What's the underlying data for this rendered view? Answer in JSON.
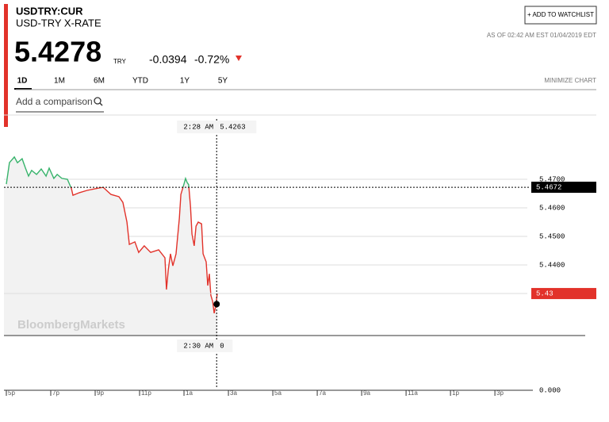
{
  "header": {
    "ticker": "USDTRY:CUR",
    "name": "USD-TRY X-RATE",
    "watchlist_button": "+ ADD TO WATCHLIST",
    "as_of": "AS OF 02:42 AM EST 01/04/2019 EDT",
    "price": "5.4278",
    "currency": "TRY",
    "change": "-0.0394",
    "change_percent": "-0.72%",
    "tabs": [
      "1D",
      "1M",
      "6M",
      "YTD",
      "1Y",
      "5Y"
    ],
    "minimize": "MINIMIZE CHART",
    "comparison_placeholder": "Add a comparison",
    "watermark": "BloombergMarkets"
  },
  "chart_data": {
    "type": "line",
    "x": [
      0,
      0.14,
      0.36,
      0.5,
      0.71,
      0.86,
      1,
      1.14,
      1.36,
      1.57,
      1.79,
      1.93,
      2.14,
      2.29,
      2.5,
      2.75,
      2.93,
      3,
      3.29,
      3.64,
      4,
      4.36,
      4.71,
      5.07,
      5.25,
      5.43,
      5.54,
      5.79,
      5.96,
      6.21,
      6.5,
      6.86,
      7.14,
      7.21,
      7.29,
      7.39,
      7.5,
      7.64,
      7.79,
      7.86,
      8,
      8.07,
      8.14,
      8.21,
      8.29,
      8.36,
      8.46,
      8.54,
      8.64,
      8.79,
      8.86,
      9,
      9.07,
      9.14,
      9.21,
      9.29,
      9.36,
      9.43,
      9.5
    ],
    "series": [
      {
        "color": "#e2322a",
        "color_above": "#37b36b",
        "values": [
          5.4683,
          5.4758,
          5.4778,
          5.4758,
          5.4772,
          5.4739,
          5.4711,
          5.4731,
          5.4717,
          5.4736,
          5.4711,
          5.4739,
          5.4703,
          5.4717,
          5.4703,
          5.47,
          5.4667,
          5.4644,
          5.4653,
          5.4661,
          5.4667,
          5.4672,
          5.4647,
          5.4639,
          5.4619,
          5.455,
          5.4472,
          5.4481,
          5.4444,
          5.4467,
          5.4444,
          5.4453,
          5.4425,
          5.4314,
          5.4383,
          5.4439,
          5.4397,
          5.4439,
          5.4564,
          5.4647,
          5.4683,
          5.4703,
          5.4689,
          5.4681,
          5.4606,
          5.4508,
          5.4467,
          5.4536,
          5.455,
          5.4544,
          5.4439,
          5.4411,
          5.4328,
          5.4369,
          5.4294,
          5.4272,
          5.4231,
          5.4258,
          5.43
        ]
      }
    ],
    "xlim": [
      0,
      23.71
    ],
    "xticks": [
      {
        "value": 0,
        "label": "5p"
      },
      {
        "value": 2,
        "label": "7p"
      },
      {
        "value": 4,
        "label": "9p"
      },
      {
        "value": 6,
        "label": "11p"
      },
      {
        "value": 8,
        "label": "1a"
      },
      {
        "value": 10,
        "label": "3a"
      },
      {
        "value": 12,
        "label": "5a"
      },
      {
        "value": 14,
        "label": "7a"
      },
      {
        "value": 16,
        "label": "9a"
      },
      {
        "value": 18,
        "label": "11a"
      },
      {
        "value": 20,
        "label": "1p"
      },
      {
        "value": 22,
        "label": "3p"
      }
    ],
    "ylim": [
      5.4153,
      5.4911
    ],
    "yticks": [
      {
        "value": 5.47,
        "label": "5.4700"
      },
      {
        "value": 5.46,
        "label": "5.4600"
      },
      {
        "value": 5.45,
        "label": "5.4500"
      },
      {
        "value": 5.44,
        "label": "5.4400"
      }
    ],
    "grid": true,
    "previous_close": {
      "value": 5.4672,
      "label": "5.4672",
      "color": "#000000"
    },
    "last": {
      "value": 5.43,
      "label": "5.43",
      "color": "#e2322a"
    },
    "crosshair": {
      "time": "2:28 AM",
      "x": 9.47,
      "value": 5.4263,
      "volume_time": "2:30 AM",
      "volume": 0
    },
    "volume_axis_label": "0.000"
  }
}
